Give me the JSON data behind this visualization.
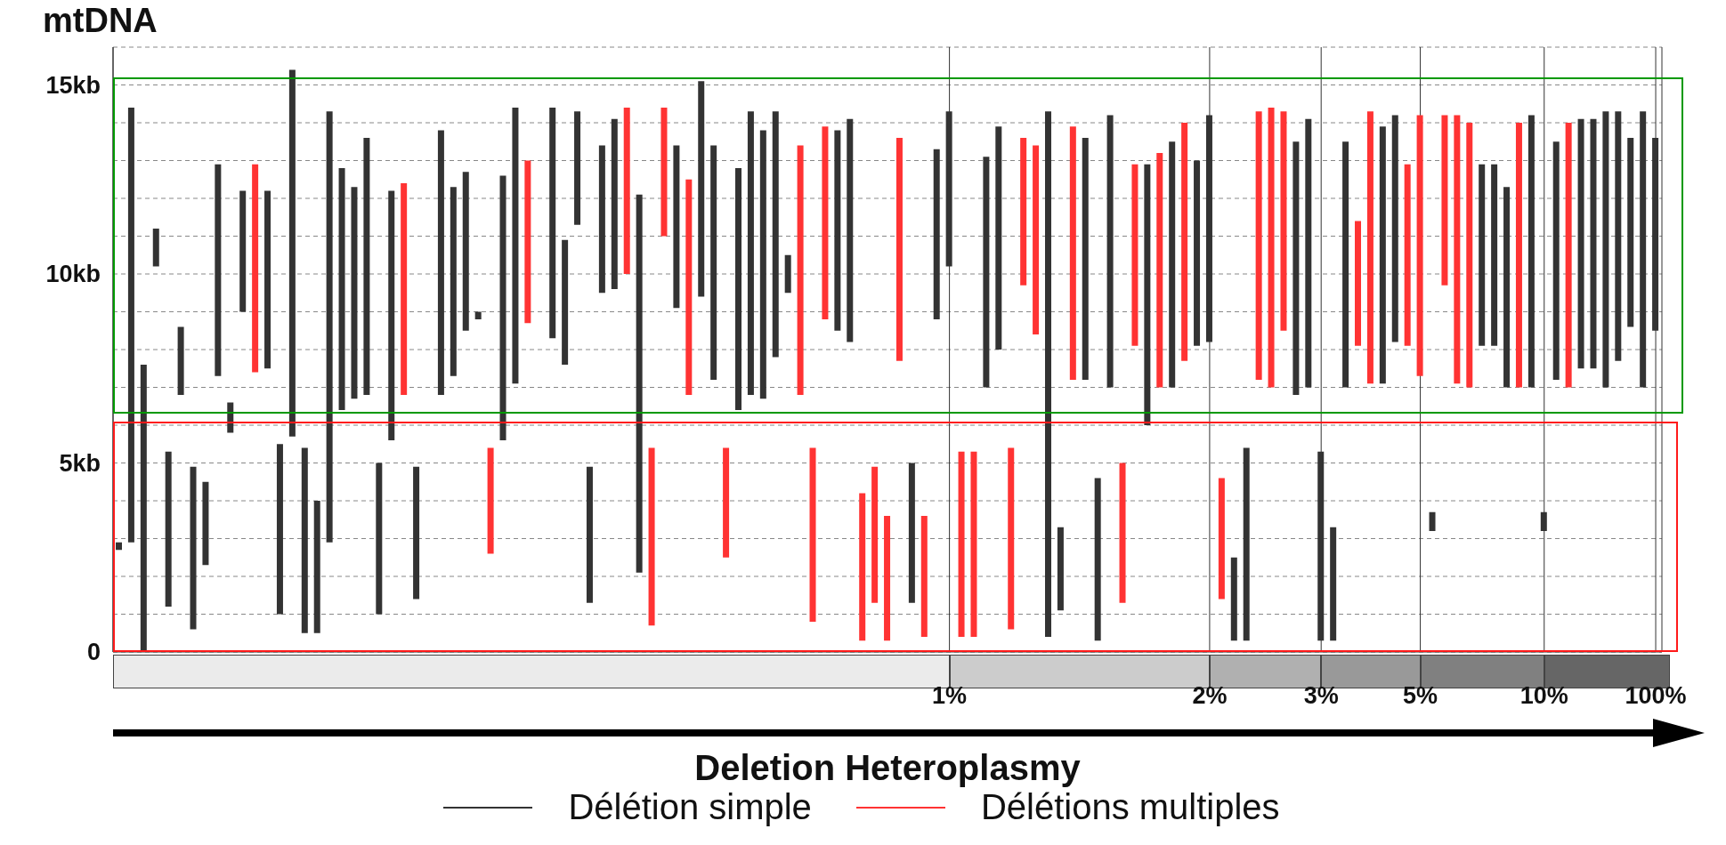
{
  "chart_data": {
    "type": "bar",
    "ylabel": "mtDNA",
    "xlabel": "Deletion Heteroplasmy",
    "ylim": [
      0,
      16
    ],
    "categories": [
      null,
      null,
      null,
      null,
      null,
      null,
      null,
      null,
      null,
      null,
      null,
      null,
      null,
      null,
      null,
      null,
      null,
      null,
      null,
      null,
      null,
      null,
      null,
      null,
      null,
      null,
      null,
      null,
      null,
      null,
      null,
      null,
      null,
      null,
      null,
      null,
      null,
      null,
      null,
      null,
      null,
      null,
      null,
      null,
      null,
      null,
      null,
      null,
      null,
      null,
      null,
      null,
      null,
      null,
      null,
      null,
      null,
      null,
      null,
      null,
      null,
      null,
      null,
      null,
      null,
      null,
      null,
      "1%",
      null,
      null,
      null,
      null,
      null,
      null,
      null,
      null,
      null,
      null,
      null,
      null,
      null,
      null,
      null,
      null,
      null,
      null,
      null,
      null,
      "2%",
      null,
      null,
      null,
      null,
      null,
      null,
      null,
      null,
      "3%",
      null,
      null,
      null,
      null,
      null,
      null,
      null,
      "5%",
      null,
      null,
      null,
      null,
      null,
      null,
      null,
      null,
      null,
      "10%",
      null,
      null,
      null,
      null,
      null,
      null,
      null,
      null,
      "100%"
    ],
    "yticks": [
      0,
      {
        "value": 1,
        "label": null
      },
      {
        "value": 2,
        "label": null
      },
      {
        "value": 3,
        "label": null
      },
      {
        "value": 4,
        "label": null
      },
      {
        "value": 5,
        "label": "5kb"
      },
      {
        "value": 6,
        "label": null
      },
      {
        "value": 7,
        "label": null
      },
      {
        "value": 8,
        "label": null
      },
      {
        "value": 9,
        "label": null
      },
      {
        "value": 10,
        "label": "10kb"
      },
      {
        "value": 11,
        "label": null
      },
      {
        "value": 12,
        "label": null
      },
      {
        "value": 13,
        "label": null
      },
      {
        "value": 14,
        "label": null
      },
      {
        "value": 15,
        "label": "15kb"
      }
    ],
    "grid": true,
    "legend": "bottom",
    "series": [
      {
        "name": "Délétion simple",
        "color": "#333333",
        "base": [
          2.7,
          2.9,
          0.0,
          10.2,
          1.2,
          6.8,
          0.6,
          2.3,
          7.3,
          5.8,
          9.0,
          null,
          7.5,
          1.0,
          5.7,
          0.5,
          0.5,
          2.9,
          6.4,
          6.7,
          6.8,
          1.0,
          5.6,
          null,
          1.4,
          null,
          6.8,
          7.3,
          8.5,
          8.8,
          null,
          5.6,
          7.1,
          null,
          null,
          8.3,
          7.6,
          11.3,
          1.3,
          9.5,
          9.6,
          null,
          2.1,
          null,
          null,
          9.1,
          null,
          9.4,
          7.2,
          null,
          6.4,
          6.8,
          6.7,
          7.8,
          9.5,
          null,
          null,
          null,
          8.5,
          8.2,
          null,
          null,
          null,
          null,
          1.3,
          null,
          8.8,
          10.2,
          null,
          null,
          7.0,
          8.0,
          null,
          null,
          null,
          0.4,
          1.1,
          null,
          7.2,
          0.3,
          7.0,
          null,
          null,
          6.0,
          null,
          7.0,
          null,
          8.1,
          8.2,
          null,
          0.3,
          0.3,
          null,
          null,
          null,
          6.8,
          7.0,
          0.3,
          0.3,
          7.0,
          null,
          null,
          7.1,
          8.2,
          null,
          null,
          3.2,
          null,
          null,
          null,
          8.1,
          8.1,
          7.0,
          null,
          7.0,
          3.2,
          7.2,
          null,
          7.5,
          7.5,
          7.0,
          7.7,
          8.6,
          7.0,
          8.5
        ],
        "values": [
          0.2,
          11.5,
          7.6,
          1.0,
          4.1,
          1.8,
          4.3,
          2.2,
          5.6,
          0.8,
          3.2,
          null,
          4.7,
          4.5,
          9.7,
          4.9,
          3.5,
          11.4,
          6.4,
          5.6,
          6.8,
          4.0,
          6.6,
          null,
          3.5,
          null,
          7.0,
          5.0,
          4.2,
          0.2,
          null,
          7.0,
          7.3,
          null,
          null,
          6.1,
          3.3,
          3.0,
          3.6,
          3.9,
          4.5,
          null,
          10.0,
          null,
          null,
          4.3,
          null,
          5.7,
          6.2,
          null,
          6.4,
          7.5,
          7.1,
          6.5,
          1.0,
          null,
          null,
          null,
          5.3,
          5.9,
          null,
          null,
          null,
          null,
          3.7,
          null,
          4.5,
          4.1,
          null,
          null,
          6.1,
          5.9,
          null,
          null,
          null,
          13.9,
          2.2,
          null,
          6.4,
          4.3,
          7.2,
          null,
          null,
          6.9,
          null,
          6.5,
          null,
          4.9,
          6.0,
          null,
          2.2,
          5.1,
          null,
          null,
          null,
          6.7,
          7.1,
          5.0,
          3.0,
          6.5,
          null,
          null,
          6.8,
          6.0,
          null,
          null,
          0.5,
          null,
          null,
          null,
          4.8,
          4.8,
          5.3,
          null,
          7.2,
          0.5,
          6.3,
          null,
          6.6,
          6.6,
          7.3,
          6.6,
          5.0,
          7.3,
          5.1
        ]
      },
      {
        "name": "Délétions multiples",
        "color": "#ff3333",
        "base": [
          null,
          null,
          null,
          null,
          null,
          null,
          null,
          null,
          null,
          null,
          null,
          7.4,
          null,
          null,
          null,
          null,
          null,
          null,
          null,
          null,
          null,
          null,
          null,
          6.8,
          null,
          null,
          null,
          null,
          null,
          null,
          2.6,
          null,
          null,
          8.7,
          null,
          null,
          null,
          null,
          null,
          null,
          null,
          10.0,
          null,
          0.7,
          11.0,
          null,
          6.8,
          null,
          null,
          2.5,
          null,
          null,
          null,
          null,
          null,
          6.8,
          0.8,
          8.8,
          null,
          null,
          0.3,
          1.3,
          0.3,
          7.7,
          null,
          0.4,
          null,
          null,
          0.4,
          0.4,
          null,
          null,
          0.6,
          9.7,
          8.4,
          null,
          null,
          7.2,
          null,
          null,
          null,
          1.3,
          8.1,
          null,
          7.0,
          null,
          7.7,
          null,
          null,
          1.4,
          null,
          null,
          7.2,
          7.0,
          8.5,
          null,
          null,
          null,
          null,
          null,
          8.1,
          7.1,
          null,
          null,
          8.1,
          7.3,
          null,
          9.7,
          7.1,
          7.0,
          null,
          null,
          null,
          7.0,
          null,
          null,
          null,
          7.0,
          null,
          null,
          null,
          null,
          null,
          null,
          null
        ],
        "values": [
          null,
          null,
          null,
          null,
          null,
          null,
          null,
          null,
          null,
          null,
          null,
          5.5,
          null,
          null,
          null,
          null,
          null,
          null,
          null,
          null,
          null,
          null,
          null,
          5.6,
          null,
          null,
          null,
          null,
          null,
          null,
          2.8,
          null,
          null,
          4.3,
          null,
          null,
          null,
          null,
          null,
          null,
          null,
          4.4,
          null,
          4.7,
          3.4,
          null,
          5.7,
          null,
          null,
          2.9,
          null,
          null,
          null,
          null,
          null,
          6.6,
          4.6,
          5.1,
          null,
          null,
          3.9,
          3.6,
          3.3,
          5.9,
          null,
          3.2,
          null,
          null,
          4.9,
          4.9,
          null,
          null,
          4.8,
          3.9,
          5.0,
          null,
          null,
          6.7,
          null,
          null,
          null,
          3.7,
          4.8,
          null,
          6.2,
          null,
          6.3,
          null,
          null,
          3.2,
          null,
          null,
          7.1,
          7.4,
          5.8,
          null,
          null,
          null,
          null,
          null,
          3.3,
          7.2,
          null,
          null,
          4.8,
          6.9,
          null,
          4.5,
          7.1,
          7.0,
          null,
          null,
          null,
          7.0,
          null,
          null,
          null,
          7.0,
          null,
          null,
          null,
          null,
          null,
          null,
          null
        ]
      }
    ]
  }
}
